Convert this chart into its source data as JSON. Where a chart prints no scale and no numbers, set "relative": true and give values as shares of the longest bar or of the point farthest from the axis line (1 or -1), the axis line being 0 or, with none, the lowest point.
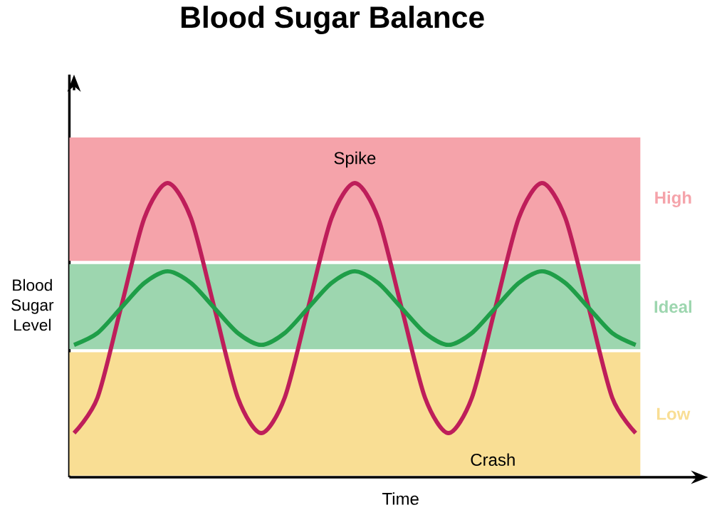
{
  "chart_data": {
    "type": "line",
    "title": "Blood Sugar Balance",
    "xlabel": "Time",
    "ylabel": "Blood Sugar Level",
    "relative": true,
    "categories": [
      null,
      null,
      null,
      null,
      null,
      null,
      null,
      null,
      null,
      null,
      null,
      null,
      null,
      null,
      null,
      null,
      null,
      null,
      null,
      null,
      null,
      null,
      null,
      null,
      null
    ],
    "series": [
      {
        "color": "#be1e5a",
        "values": [
          0.15,
          0.27,
          0.575,
          0.88,
          1,
          0.88,
          0.575,
          0.27,
          0.15,
          0.27,
          0.575,
          0.88,
          1,
          0.88,
          0.575,
          0.27,
          0.15,
          0.27,
          0.575,
          0.88,
          1,
          0.88,
          0.575,
          0.27,
          0.15
        ]
      },
      {
        "color": "#1f9e48",
        "values": [
          0.45,
          0.49,
          0.575,
          0.66,
          0.7,
          0.66,
          0.575,
          0.49,
          0.45,
          0.49,
          0.575,
          0.66,
          0.7,
          0.66,
          0.575,
          0.49,
          0.45,
          0.49,
          0.575,
          0.66,
          0.7,
          0.66,
          0.575,
          0.49,
          0.45
        ]
      }
    ],
    "bands": [
      {
        "axis": "y",
        "from": 0.73,
        "to": 1.16,
        "label": "High",
        "color": "#f5a3aa"
      },
      {
        "axis": "y",
        "from": 0.43,
        "to": 0.73,
        "label": "Ideal",
        "color": "#9dd6af"
      },
      {
        "axis": "y",
        "from": 0,
        "to": 0.43,
        "label": "Low",
        "color": "#f9de94"
      }
    ],
    "annotations": [
      "Spike",
      "Crash"
    ]
  }
}
